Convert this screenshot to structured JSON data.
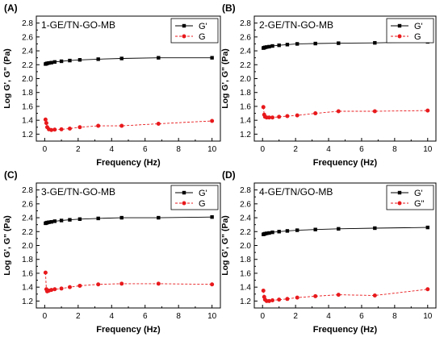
{
  "colors": {
    "gprime": "#000000",
    "gdouble": "#e8191c",
    "axis": "#000000",
    "background": "#ffffff"
  },
  "chart_data": [
    {
      "type": "line",
      "panel_label": "(A)",
      "title": "1-GE/TN-GO-MB",
      "xlabel": "Frequency (Hz)",
      "ylabel": "Log G', G\" (Pa)",
      "xlim": [
        -0.5,
        10.5
      ],
      "ylim": [
        1.1,
        2.9
      ],
      "xticks": [
        0,
        2,
        4,
        6,
        8,
        10
      ],
      "yticks": [
        1.2,
        1.4,
        1.6,
        1.8,
        2.0,
        2.2,
        2.4,
        2.6,
        2.8
      ],
      "legend_position": "top-right",
      "grid": false,
      "series": [
        {
          "name": "G'",
          "marker": "square",
          "line": "solid",
          "x": [
            0.05,
            0.1,
            0.15,
            0.25,
            0.4,
            0.6,
            1.0,
            1.5,
            2.1,
            3.2,
            4.6,
            6.8,
            10.0
          ],
          "y": [
            2.21,
            2.215,
            2.22,
            2.225,
            2.23,
            2.24,
            2.25,
            2.26,
            2.27,
            2.28,
            2.29,
            2.3,
            2.3
          ]
        },
        {
          "name": "G",
          "marker": "circle",
          "line": "dashed",
          "x": [
            0.05,
            0.1,
            0.15,
            0.25,
            0.4,
            0.6,
            1.0,
            1.5,
            2.1,
            3.2,
            4.6,
            6.8,
            10.0
          ],
          "y": [
            1.41,
            1.36,
            1.3,
            1.27,
            1.26,
            1.265,
            1.27,
            1.28,
            1.3,
            1.32,
            1.32,
            1.35,
            1.39
          ]
        }
      ]
    },
    {
      "type": "line",
      "panel_label": "(B)",
      "title": "2-GE/TN-GO-MB",
      "xlabel": "Frequency (Hz)",
      "ylabel": "Log G', G\" (Pa)",
      "xlim": [
        -0.5,
        10.5
      ],
      "ylim": [
        1.1,
        2.9
      ],
      "xticks": [
        0,
        2,
        4,
        6,
        8,
        10
      ],
      "yticks": [
        1.2,
        1.4,
        1.6,
        1.8,
        2.0,
        2.2,
        2.4,
        2.6,
        2.8
      ],
      "legend_position": "top-right",
      "grid": false,
      "series": [
        {
          "name": "G'",
          "marker": "square",
          "line": "solid",
          "x": [
            0.05,
            0.1,
            0.15,
            0.25,
            0.4,
            0.6,
            1.0,
            1.5,
            2.1,
            3.2,
            4.6,
            6.8,
            10.0
          ],
          "y": [
            2.44,
            2.445,
            2.45,
            2.455,
            2.46,
            2.47,
            2.48,
            2.49,
            2.5,
            2.505,
            2.51,
            2.515,
            2.53
          ]
        },
        {
          "name": "G",
          "marker": "circle",
          "line": "dashed",
          "x": [
            0.05,
            0.1,
            0.15,
            0.25,
            0.4,
            0.6,
            1.0,
            1.5,
            2.1,
            3.2,
            4.6,
            6.8,
            10.0
          ],
          "y": [
            1.59,
            1.48,
            1.45,
            1.44,
            1.44,
            1.44,
            1.45,
            1.46,
            1.47,
            1.5,
            1.53,
            1.53,
            1.54
          ]
        }
      ]
    },
    {
      "type": "line",
      "panel_label": "(C)",
      "title": "3-GE/TN-GO-MB",
      "xlabel": "Frequency (Hz)",
      "ylabel": "Log G', G\" (Pa)",
      "xlim": [
        -0.5,
        10.5
      ],
      "ylim": [
        1.1,
        2.9
      ],
      "xticks": [
        0,
        2,
        4,
        6,
        8,
        10
      ],
      "yticks": [
        1.2,
        1.4,
        1.6,
        1.8,
        2.0,
        2.2,
        2.4,
        2.6,
        2.8
      ],
      "legend_position": "top-right",
      "grid": false,
      "series": [
        {
          "name": "G'",
          "marker": "square",
          "line": "solid",
          "x": [
            0.05,
            0.1,
            0.15,
            0.25,
            0.4,
            0.6,
            1.0,
            1.5,
            2.1,
            3.2,
            4.6,
            6.8,
            10.0
          ],
          "y": [
            2.32,
            2.325,
            2.33,
            2.335,
            2.34,
            2.35,
            2.36,
            2.37,
            2.38,
            2.39,
            2.4,
            2.4,
            2.41
          ]
        },
        {
          "name": "G",
          "marker": "circle",
          "line": "dashed",
          "x": [
            0.05,
            0.1,
            0.15,
            0.25,
            0.4,
            0.6,
            1.0,
            1.5,
            2.1,
            3.2,
            4.6,
            6.8,
            10.0
          ],
          "y": [
            1.61,
            1.37,
            1.34,
            1.35,
            1.36,
            1.37,
            1.38,
            1.4,
            1.42,
            1.44,
            1.45,
            1.45,
            1.44
          ]
        }
      ]
    },
    {
      "type": "line",
      "panel_label": "(D)",
      "title": "4-GE/TN/GO-MB",
      "xlabel": "Frequency (Hz)",
      "ylabel": "Log G', G\" (Pa)",
      "xlim": [
        -0.5,
        10.5
      ],
      "ylim": [
        1.1,
        2.9
      ],
      "xticks": [
        0,
        2,
        4,
        6,
        8,
        10
      ],
      "yticks": [
        1.2,
        1.4,
        1.6,
        1.8,
        2.0,
        2.2,
        2.4,
        2.6,
        2.8
      ],
      "legend_position": "top-right",
      "grid": false,
      "series": [
        {
          "name": "G'",
          "marker": "square",
          "line": "solid",
          "x": [
            0.05,
            0.1,
            0.15,
            0.25,
            0.4,
            0.6,
            1.0,
            1.5,
            2.1,
            3.2,
            4.6,
            6.8,
            10.0
          ],
          "y": [
            2.16,
            2.165,
            2.17,
            2.175,
            2.18,
            2.19,
            2.2,
            2.21,
            2.22,
            2.23,
            2.24,
            2.25,
            2.26
          ]
        },
        {
          "name": "G\"",
          "marker": "circle",
          "line": "dashed",
          "x": [
            0.05,
            0.1,
            0.15,
            0.25,
            0.4,
            0.6,
            1.0,
            1.5,
            2.1,
            3.2,
            4.6,
            6.8,
            10.0
          ],
          "y": [
            1.35,
            1.26,
            1.22,
            1.2,
            1.2,
            1.21,
            1.22,
            1.23,
            1.25,
            1.27,
            1.29,
            1.28,
            1.37
          ]
        }
      ]
    }
  ]
}
